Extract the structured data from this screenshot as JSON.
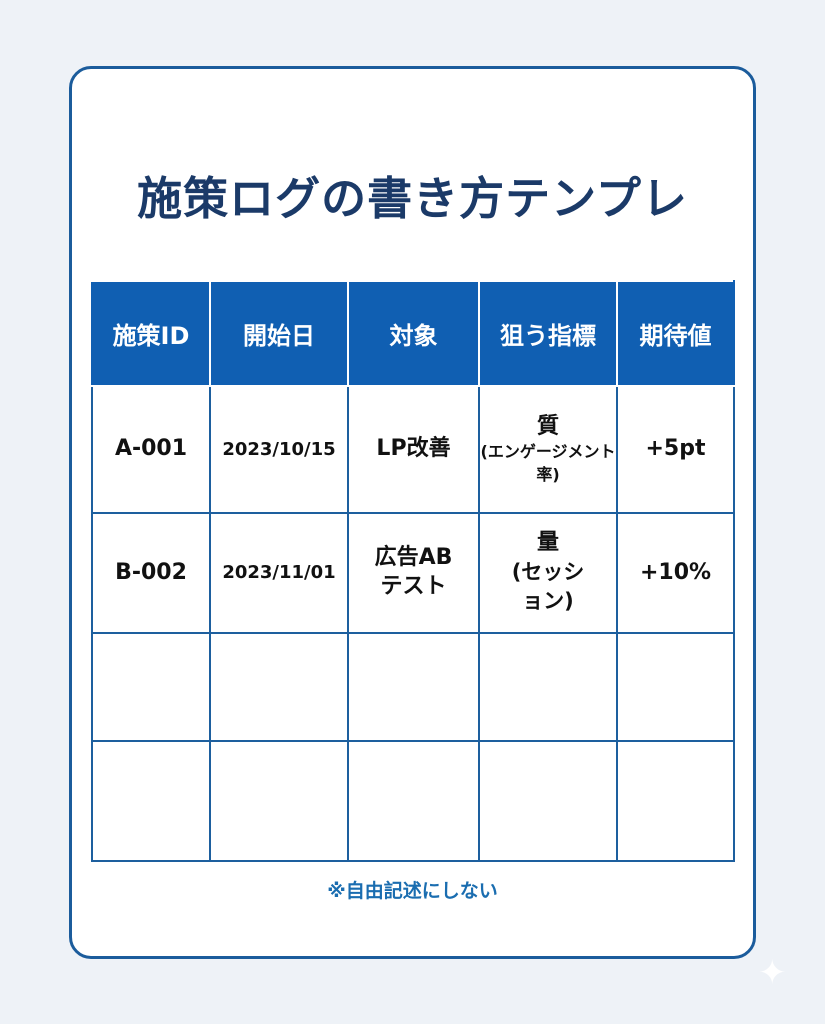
{
  "title": "施策ログの書き方テンプレ",
  "table": {
    "headers": [
      "施策ID",
      "開始日",
      "対象",
      "狙う指標",
      "期待値"
    ],
    "rows": [
      {
        "id": "A-001",
        "date": "2023/10/15",
        "target": "LP改善",
        "metric_main": "質",
        "metric_sub": "(エンゲージメント率)",
        "expected": "+5pt"
      },
      {
        "id": "B-002",
        "date": "2023/11/01",
        "target": "広告ABテスト",
        "metric_main": "量",
        "metric_sub": "(セッション)",
        "expected": "+10%"
      }
    ]
  },
  "footer_note": "※自由記述にしない",
  "colors": {
    "header_bg": "#105fb2",
    "border": "#1b5c9c",
    "title": "#1b3a68",
    "note": "#1a6db0"
  }
}
